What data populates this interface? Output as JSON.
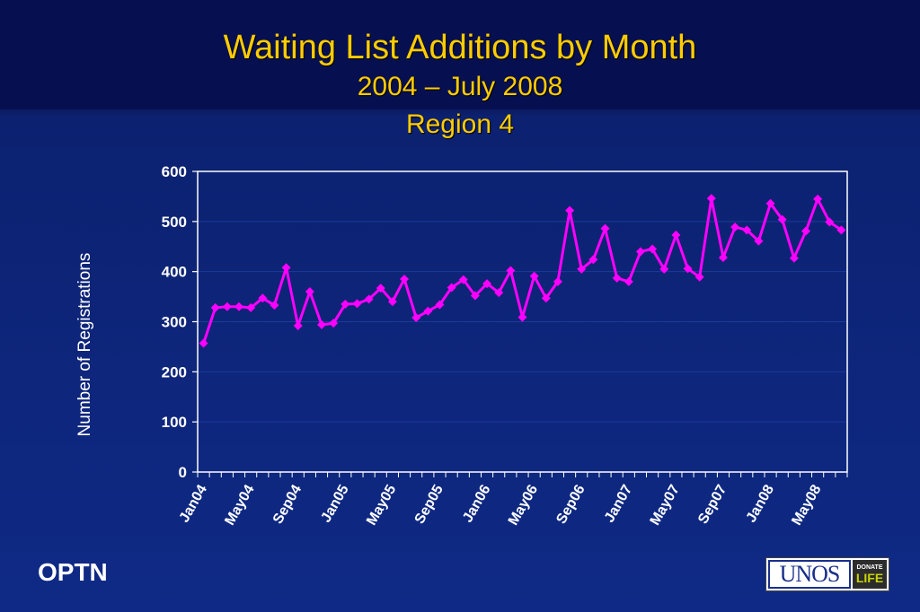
{
  "slide": {
    "title": "Waiting List Additions by Month",
    "subtitle_line1": "2004 – July 2008",
    "subtitle_line2": "Region 4",
    "footer_left": "OPTN",
    "logo_text": "UNOS",
    "logo_badge_top": "DONATE",
    "logo_badge_bottom": "LIFE"
  },
  "colors": {
    "title": "#ffcc00",
    "series": "#ff00ff",
    "background": "#0f2a86",
    "text": "#ffffff"
  },
  "chart_data": {
    "type": "line",
    "title": "",
    "xlabel": "",
    "ylabel": "Number of Registrations",
    "ylim": [
      0,
      600
    ],
    "yticks": [
      0,
      100,
      200,
      300,
      400,
      500,
      600
    ],
    "grid": true,
    "x_tick_labels": [
      "Jan04",
      "May04",
      "Sep04",
      "Jan05",
      "May05",
      "Sep05",
      "Jan06",
      "May06",
      "Sep06",
      "Jan07",
      "May07",
      "Sep07",
      "Jan08",
      "May08"
    ],
    "x": [
      "Jan04",
      "Feb04",
      "Mar04",
      "Apr04",
      "May04",
      "Jun04",
      "Jul04",
      "Aug04",
      "Sep04",
      "Oct04",
      "Nov04",
      "Dec04",
      "Jan05",
      "Feb05",
      "Mar05",
      "Apr05",
      "May05",
      "Jun05",
      "Jul05",
      "Aug05",
      "Sep05",
      "Oct05",
      "Nov05",
      "Dec05",
      "Jan06",
      "Feb06",
      "Mar06",
      "Apr06",
      "May06",
      "Jun06",
      "Jul06",
      "Aug06",
      "Sep06",
      "Oct06",
      "Nov06",
      "Dec06",
      "Jan07",
      "Feb07",
      "Mar07",
      "Apr07",
      "May07",
      "Jun07",
      "Jul07",
      "Aug07",
      "Sep07",
      "Oct07",
      "Nov07",
      "Dec07",
      "Jan08",
      "Feb08",
      "Mar08",
      "Apr08",
      "May08",
      "Jun08",
      "Jul08"
    ],
    "series": [
      {
        "name": "",
        "values": [
          257,
          328,
          330,
          330,
          328,
          347,
          333,
          408,
          292,
          360,
          294,
          297,
          335,
          336,
          345,
          367,
          340,
          385,
          308,
          321,
          334,
          368,
          384,
          352,
          376,
          358,
          402,
          309,
          391,
          347,
          380,
          522,
          405,
          424,
          486,
          387,
          380,
          440,
          445,
          405,
          473,
          406,
          389,
          546,
          428,
          489,
          483,
          461,
          536,
          504,
          427,
          481,
          545,
          499,
          483
        ]
      }
    ]
  }
}
